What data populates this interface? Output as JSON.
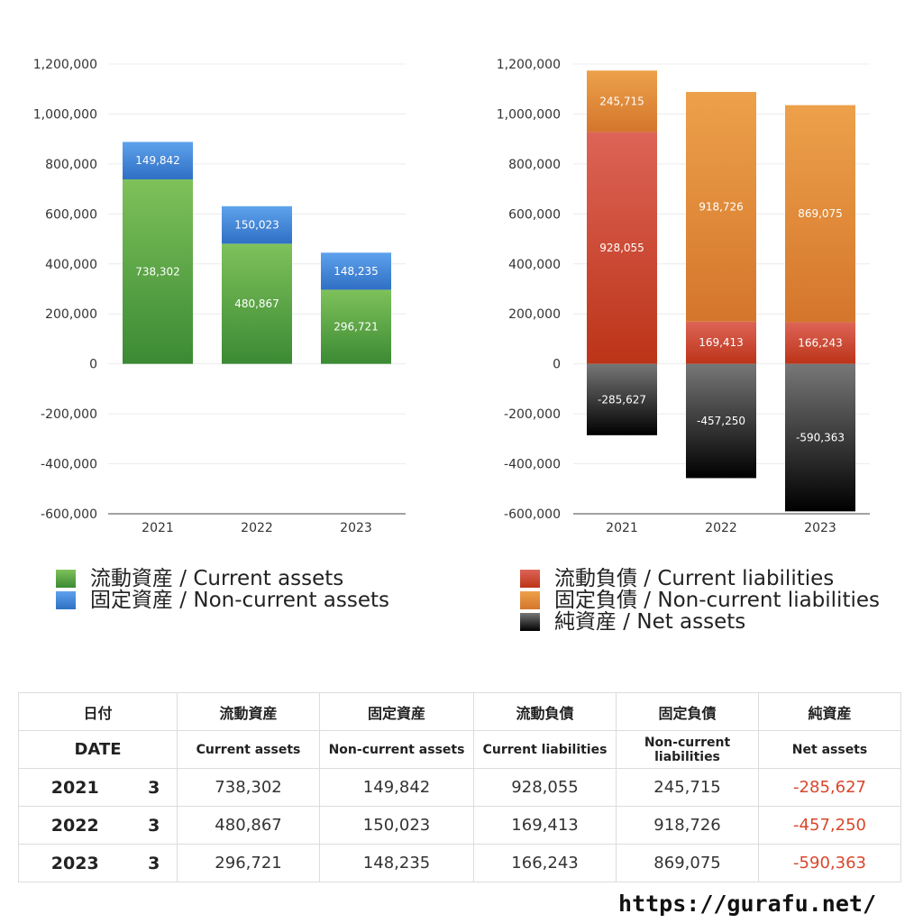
{
  "chart_data": [
    {
      "type": "bar",
      "stacked": true,
      "categories": [
        "2021",
        "2022",
        "2023"
      ],
      "series": [
        {
          "name": "流動資産 / Current assets",
          "values": [
            738302,
            480867,
            296721
          ],
          "labels": [
            "738,302",
            "480,867",
            "296,721"
          ],
          "color": "#4f9a3c"
        },
        {
          "name": "固定資産 / Non-current assets",
          "values": [
            149842,
            150023,
            148235
          ],
          "labels": [
            "149,842",
            "150,023",
            "148,235"
          ],
          "color": "#3f82d8"
        }
      ],
      "ylim": [
        -600000,
        1200000
      ],
      "yticks": [
        "1,200,000",
        "1,000,000",
        "800,000",
        "600,000",
        "400,000",
        "200,000",
        "0",
        "-200,000",
        "-400,000",
        "-600,000"
      ],
      "legend_position": "bottom-left",
      "grid": true
    },
    {
      "type": "bar",
      "stacked": true,
      "categories": [
        "2021",
        "2022",
        "2023"
      ],
      "series": [
        {
          "name": "流動負債 / Current liabilities",
          "values": [
            928055,
            169413,
            166243
          ],
          "labels": [
            "928,055",
            "169,413",
            "166,243"
          ],
          "color": "#c8412f"
        },
        {
          "name": "固定負債 / Non-current liabilities",
          "values": [
            245715,
            918726,
            869075
          ],
          "labels": [
            "245,715",
            "918,726",
            "869,075"
          ],
          "color": "#e08a36"
        },
        {
          "name": "純資産 / Net assets",
          "values": [
            -285627,
            -457250,
            -590363
          ],
          "labels": [
            "-285,627",
            "-457,250",
            "-590,363"
          ],
          "color": "#333333"
        }
      ],
      "ylim": [
        -600000,
        1200000
      ],
      "yticks": [
        "1,200,000",
        "1,000,000",
        "800,000",
        "600,000",
        "400,000",
        "200,000",
        "0",
        "-200,000",
        "-400,000",
        "-600,000"
      ],
      "legend_position": "bottom-left",
      "grid": true
    }
  ],
  "table": {
    "header_ja": [
      "日付",
      "流動資産",
      "固定資産",
      "流動負債",
      "固定負債",
      "純資産"
    ],
    "header_en": [
      "DATE",
      "Current assets",
      "Non-current assets",
      "Current liabilities",
      "Non-current liabilities",
      "Net assets"
    ],
    "rows": [
      {
        "year": "2021",
        "month": "3",
        "values": [
          "738,302",
          "149,842",
          "928,055",
          "245,715",
          "-285,627"
        ]
      },
      {
        "year": "2022",
        "month": "3",
        "values": [
          "480,867",
          "150,023",
          "169,413",
          "918,726",
          "-457,250"
        ]
      },
      {
        "year": "2023",
        "month": "3",
        "values": [
          "296,721",
          "148,235",
          "166,243",
          "869,075",
          "-590,363"
        ]
      }
    ]
  },
  "footer_url": "https://gurafu.net/"
}
